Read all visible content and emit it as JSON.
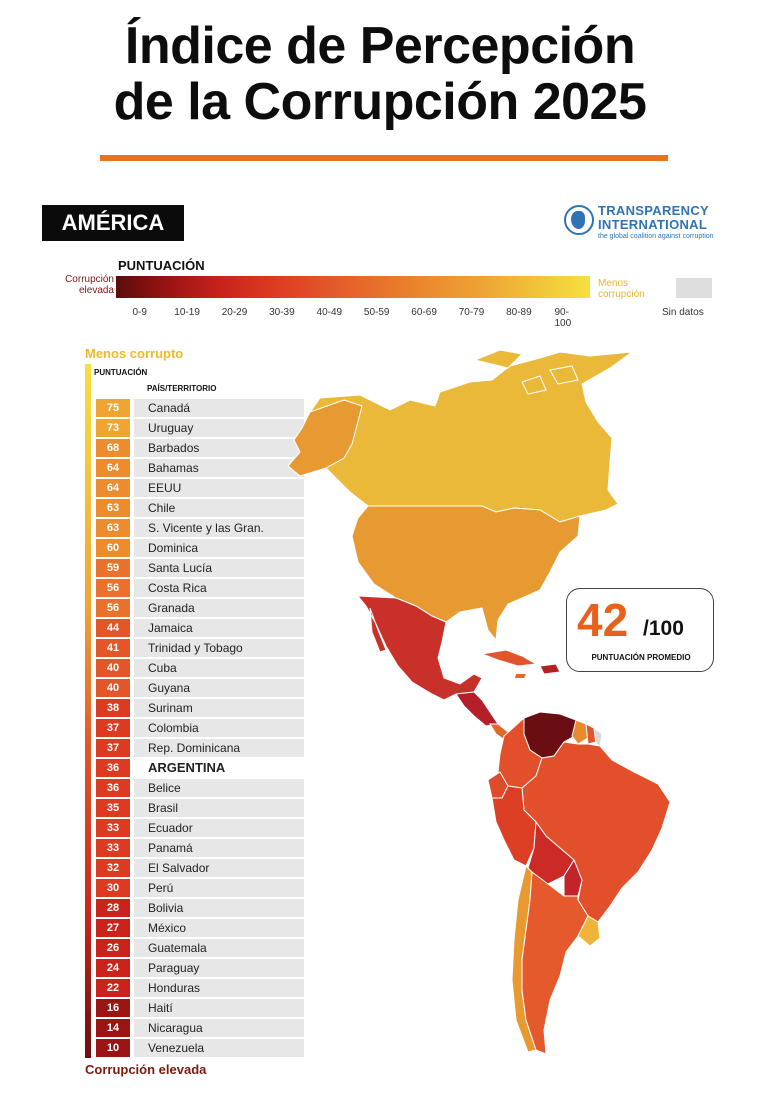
{
  "title_line1": "Índice de Percepción",
  "title_line2": "de la Corrupción 2025",
  "region": "AMÉRICA",
  "logo": {
    "name_line1": "TRANSPARENCY",
    "name_line2": "INTERNATIONAL",
    "tagline": "the global coalition against corruption"
  },
  "legend": {
    "title": "PUNTUACIÓN",
    "left_label_1": "Corrupción",
    "left_label_2": "elevada",
    "right_label_1": "Menos",
    "right_label_2": "corrupción",
    "no_data": "Sin datos",
    "ranges": [
      "0-9",
      "10-19",
      "20-29",
      "30-39",
      "40-49",
      "50-59",
      "60-69",
      "70-79",
      "80-89",
      "90-100"
    ]
  },
  "table_header": {
    "top": "Menos corrupto",
    "score_col": "PUNTUACIÓN",
    "country_col": "PAÍS/TERRITORIO",
    "bottom": "Corrupción elevada"
  },
  "average": {
    "value": "42",
    "denominator": "/100",
    "label": "PUNTUACIÓN PROMEDIO"
  },
  "colors": {
    "s70": "#eea534",
    "s60": "#ec8c2f",
    "s50": "#e8712b",
    "s40": "#e2562a",
    "s30": "#dd3a22",
    "s20": "#c9231b",
    "s10": "#9a1414",
    "s0": "#5c0c0c",
    "accent": "#e8731c"
  },
  "chart_data": {
    "type": "table",
    "columns": [
      "PUNTUACIÓN",
      "PAÍS/TERRITORIO"
    ],
    "rows": [
      {
        "country": "Canadá",
        "score": 75
      },
      {
        "country": "Uruguay",
        "score": 73
      },
      {
        "country": "Barbados",
        "score": 68
      },
      {
        "country": "Bahamas",
        "score": 64
      },
      {
        "country": "EEUU",
        "score": 64
      },
      {
        "country": "Chile",
        "score": 63
      },
      {
        "country": "S. Vicente y las Gran.",
        "score": 63
      },
      {
        "country": "Dominica",
        "score": 60
      },
      {
        "country": "Santa Lucía",
        "score": 59
      },
      {
        "country": "Costa Rica",
        "score": 56
      },
      {
        "country": "Granada",
        "score": 56
      },
      {
        "country": "Jamaica",
        "score": 44
      },
      {
        "country": "Trinidad y Tobago",
        "score": 41
      },
      {
        "country": "Cuba",
        "score": 40
      },
      {
        "country": "Guyana",
        "score": 40
      },
      {
        "country": "Surinam",
        "score": 38
      },
      {
        "country": "Colombia",
        "score": 37
      },
      {
        "country": "Rep. Dominicana",
        "score": 37
      },
      {
        "country": "ARGENTINA",
        "score": 36,
        "highlight": true
      },
      {
        "country": "Belice",
        "score": 36
      },
      {
        "country": "Brasil",
        "score": 35
      },
      {
        "country": "Ecuador",
        "score": 33
      },
      {
        "country": "Panamá",
        "score": 33
      },
      {
        "country": "El Salvador",
        "score": 32
      },
      {
        "country": "Perú",
        "score": 30
      },
      {
        "country": "Bolivia",
        "score": 28
      },
      {
        "country": "México",
        "score": 27
      },
      {
        "country": "Guatemala",
        "score": 26
      },
      {
        "country": "Paraguay",
        "score": 24
      },
      {
        "country": "Honduras",
        "score": 22
      },
      {
        "country": "Haití",
        "score": 16
      },
      {
        "country": "Nicaragua",
        "score": 14
      },
      {
        "country": "Venezuela",
        "score": 10
      }
    ]
  }
}
